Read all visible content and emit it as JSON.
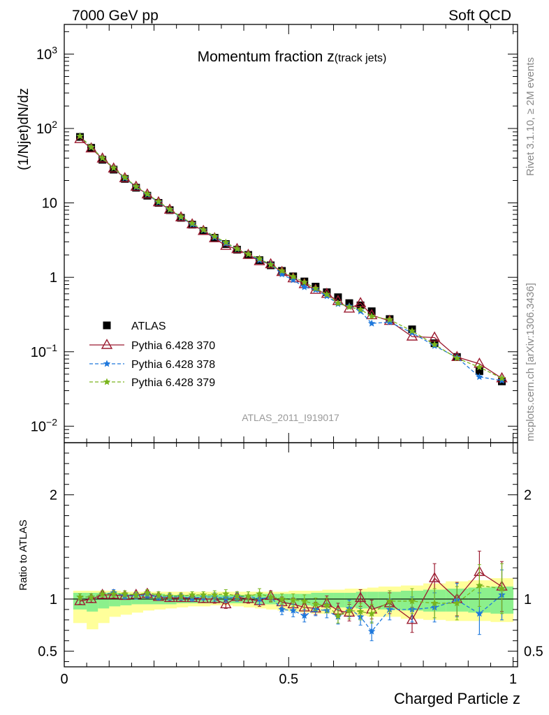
{
  "header": {
    "left": "7000 GeV pp",
    "right": "Soft QCD"
  },
  "side_labels": {
    "rivet": "Rivet 3.1.10, ≥ 2M events",
    "source": "mcplots.cern.ch [arXiv:1306.3436]"
  },
  "chart_data": [
    {
      "type": "scatter",
      "title_main": "Momentum fraction ",
      "title_var": "z",
      "title_sub": "(track jets)",
      "ylabel": "(1/Njet)dN/dz",
      "xlabel": "",
      "yscale": "log",
      "ylim": [
        0.006,
        2500
      ],
      "xlim": [
        0,
        1.01
      ],
      "y_ticks": [
        {
          "v": 0.01,
          "b": "10",
          "e": "−2"
        },
        {
          "v": 0.1,
          "b": "10",
          "e": "−1"
        },
        {
          "v": 1,
          "b": "1",
          "e": ""
        },
        {
          "v": 10,
          "b": "10",
          "e": ""
        },
        {
          "v": 100,
          "b": "10",
          "e": "2"
        },
        {
          "v": 1000,
          "b": "10",
          "e": "3"
        }
      ],
      "analysis_label": "ATLAS_2011_I919017",
      "legend": {
        "placement": "bottom-left"
      },
      "x": [
        0.035,
        0.06,
        0.085,
        0.11,
        0.135,
        0.16,
        0.185,
        0.21,
        0.235,
        0.26,
        0.285,
        0.31,
        0.335,
        0.36,
        0.385,
        0.41,
        0.435,
        0.46,
        0.485,
        0.51,
        0.535,
        0.56,
        0.585,
        0.61,
        0.635,
        0.66,
        0.685,
        0.725,
        0.775,
        0.825,
        0.875,
        0.925,
        0.975
      ],
      "series": [
        {
          "name": "ATLAS",
          "color": "#000000",
          "marker": "square",
          "line": "none",
          "values": [
            77,
            55,
            38,
            28,
            21,
            16,
            12.5,
            10,
            8,
            6.3,
            5.1,
            4.2,
            3.4,
            2.8,
            2.35,
            2.0,
            1.7,
            1.45,
            1.22,
            1.03,
            0.88,
            0.75,
            0.63,
            0.54,
            0.45,
            0.42,
            0.35,
            0.275,
            0.2,
            0.13,
            0.085,
            0.055,
            0.04
          ]
        },
        {
          "name": "Pythia 6.428 370",
          "color": "#9b1b30",
          "marker": "triangle",
          "line": "solid",
          "values": [
            72,
            54,
            39.5,
            29,
            21.5,
            16.5,
            13,
            10.2,
            8.1,
            6.4,
            5.15,
            4.2,
            3.35,
            2.65,
            2.4,
            2.0,
            1.65,
            1.5,
            1.18,
            0.97,
            0.81,
            0.68,
            0.6,
            0.48,
            0.38,
            0.45,
            0.31,
            0.26,
            0.16,
            0.155,
            0.085,
            0.069,
            0.044
          ]
        },
        {
          "name": "Pythia 6.428 378",
          "color": "#1e78dc",
          "marker": "star",
          "line": "dashed",
          "values": [
            79,
            56,
            40,
            29.5,
            21.5,
            16.4,
            13,
            10.2,
            8.1,
            6.4,
            5.15,
            4.3,
            3.45,
            2.85,
            2.4,
            2.05,
            1.7,
            1.5,
            1.1,
            0.92,
            0.74,
            0.68,
            0.56,
            0.44,
            0.41,
            0.35,
            0.24,
            0.25,
            0.18,
            0.12,
            0.084,
            0.046,
            0.041
          ]
        },
        {
          "name": "Pythia 6.428 379",
          "color": "#7ab51d",
          "marker": "star",
          "line": "dashed",
          "values": [
            79,
            56,
            40,
            29.5,
            22,
            16.6,
            13.2,
            10.4,
            8.2,
            6.5,
            5.3,
            4.35,
            3.55,
            2.95,
            2.42,
            2.05,
            1.78,
            1.48,
            1.22,
            1.02,
            0.86,
            0.71,
            0.59,
            0.45,
            0.4,
            0.37,
            0.3,
            0.27,
            0.19,
            0.125,
            0.082,
            0.062,
            0.044
          ]
        }
      ]
    },
    {
      "type": "scatter",
      "title": "",
      "ylabel": "Ratio to ATLAS",
      "xlabel": "Charged Particle z",
      "ylim": [
        0.35,
        2.5
      ],
      "xlim": [
        0,
        1.01
      ],
      "y_ticks": [
        "0.5",
        "1",
        "2"
      ],
      "x_ticks": [
        "0",
        "0.5",
        "1"
      ],
      "reference_line": 1,
      "bands": {
        "inner_color": "#8cf08c",
        "outer_color": "#ffff9a",
        "x_edges": [
          0.02,
          0.05,
          0.075,
          0.1,
          0.125,
          0.15,
          0.175,
          0.2,
          0.225,
          0.25,
          0.275,
          0.3,
          0.325,
          0.35,
          0.375,
          0.4,
          0.425,
          0.45,
          0.475,
          0.5,
          0.525,
          0.55,
          0.575,
          0.6,
          0.625,
          0.65,
          0.675,
          0.7,
          0.75,
          0.8,
          0.85,
          0.9,
          0.95,
          1.0
        ],
        "inner_lo": [
          0.9,
          0.88,
          0.91,
          0.93,
          0.94,
          0.95,
          0.95,
          0.95,
          0.95,
          0.96,
          0.96,
          0.96,
          0.96,
          0.96,
          0.96,
          0.96,
          0.95,
          0.95,
          0.95,
          0.94,
          0.94,
          0.93,
          0.93,
          0.92,
          0.92,
          0.91,
          0.91,
          0.9,
          0.89,
          0.88,
          0.88,
          0.87,
          0.86
        ],
        "inner_hi": [
          1.06,
          1.06,
          1.06,
          1.06,
          1.05,
          1.05,
          1.05,
          1.05,
          1.04,
          1.04,
          1.04,
          1.04,
          1.04,
          1.04,
          1.04,
          1.04,
          1.05,
          1.05,
          1.05,
          1.05,
          1.05,
          1.06,
          1.06,
          1.06,
          1.06,
          1.07,
          1.07,
          1.07,
          1.08,
          1.09,
          1.1,
          1.11,
          1.12
        ],
        "outer_lo": [
          0.77,
          0.71,
          0.77,
          0.83,
          0.85,
          0.87,
          0.89,
          0.9,
          0.91,
          0.92,
          0.93,
          0.93,
          0.94,
          0.94,
          0.93,
          0.92,
          0.91,
          0.9,
          0.89,
          0.88,
          0.87,
          0.86,
          0.86,
          0.85,
          0.84,
          0.84,
          0.83,
          0.83,
          0.81,
          0.8,
          0.79,
          0.79,
          0.78
        ],
        "outer_hi": [
          1.08,
          1.08,
          1.08,
          1.08,
          1.07,
          1.07,
          1.07,
          1.07,
          1.07,
          1.07,
          1.07,
          1.07,
          1.07,
          1.07,
          1.07,
          1.07,
          1.07,
          1.07,
          1.07,
          1.08,
          1.08,
          1.08,
          1.09,
          1.09,
          1.1,
          1.1,
          1.11,
          1.12,
          1.13,
          1.15,
          1.17,
          1.18,
          1.2
        ]
      },
      "x": [
        0.035,
        0.06,
        0.085,
        0.11,
        0.135,
        0.16,
        0.185,
        0.21,
        0.235,
        0.26,
        0.285,
        0.31,
        0.335,
        0.36,
        0.385,
        0.41,
        0.435,
        0.46,
        0.485,
        0.51,
        0.535,
        0.56,
        0.585,
        0.61,
        0.635,
        0.66,
        0.685,
        0.725,
        0.775,
        0.825,
        0.875,
        0.925,
        0.975
      ],
      "series": [
        {
          "name": "Pythia 6.428 370",
          "color": "#9b1b30",
          "marker": "triangle",
          "line": "solid",
          "values": [
            0.98,
            1.0,
            1.04,
            1.04,
            1.03,
            1.04,
            1.05,
            1.02,
            1.01,
            1.01,
            1.01,
            1.0,
            1.0,
            0.95,
            1.02,
            1.0,
            0.98,
            1.03,
            0.97,
            0.95,
            0.92,
            0.91,
            0.96,
            0.89,
            0.87,
            1.01,
            0.9,
            0.96,
            0.8,
            1.2,
            1.0,
            1.26,
            1.12
          ],
          "err": [
            0.03,
            0.03,
            0.03,
            0.03,
            0.03,
            0.03,
            0.03,
            0.03,
            0.03,
            0.03,
            0.03,
            0.03,
            0.04,
            0.04,
            0.04,
            0.04,
            0.05,
            0.05,
            0.05,
            0.06,
            0.06,
            0.06,
            0.07,
            0.07,
            0.08,
            0.08,
            0.09,
            0.1,
            0.12,
            0.14,
            0.16,
            0.2,
            0.24
          ]
        },
        {
          "name": "Pythia 6.428 378",
          "color": "#1e78dc",
          "marker": "star",
          "line": "dashed",
          "values": [
            1.02,
            1.02,
            1.05,
            1.06,
            1.03,
            1.03,
            1.04,
            1.02,
            1.02,
            1.02,
            1.01,
            1.02,
            1.02,
            1.01,
            1.02,
            1.03,
            1.0,
            1.02,
            0.9,
            0.89,
            0.84,
            0.9,
            0.89,
            0.83,
            0.91,
            0.83,
            0.69,
            0.9,
            0.9,
            0.92,
            0.99,
            0.86,
            1.04
          ],
          "err": [
            0.03,
            0.03,
            0.03,
            0.03,
            0.03,
            0.03,
            0.03,
            0.03,
            0.03,
            0.03,
            0.03,
            0.03,
            0.04,
            0.04,
            0.04,
            0.04,
            0.05,
            0.05,
            0.05,
            0.06,
            0.06,
            0.06,
            0.07,
            0.07,
            0.08,
            0.08,
            0.09,
            0.1,
            0.12,
            0.14,
            0.16,
            0.2,
            0.24
          ]
        },
        {
          "name": "Pythia 6.428 379",
          "color": "#7ab51d",
          "marker": "star",
          "line": "dashed",
          "values": [
            1.02,
            1.02,
            1.05,
            1.05,
            1.05,
            1.04,
            1.06,
            1.04,
            1.03,
            1.03,
            1.04,
            1.04,
            1.04,
            1.05,
            1.03,
            1.03,
            1.05,
            1.02,
            1.0,
            0.99,
            0.98,
            0.95,
            0.94,
            0.84,
            0.89,
            0.88,
            0.86,
            0.98,
            0.98,
            0.96,
            0.96,
            1.13,
            1.1
          ],
          "err": [
            0.03,
            0.03,
            0.03,
            0.03,
            0.03,
            0.03,
            0.03,
            0.03,
            0.03,
            0.03,
            0.03,
            0.03,
            0.04,
            0.04,
            0.04,
            0.04,
            0.05,
            0.05,
            0.05,
            0.06,
            0.06,
            0.06,
            0.07,
            0.07,
            0.08,
            0.08,
            0.09,
            0.1,
            0.12,
            0.14,
            0.16,
            0.2,
            0.24
          ]
        }
      ]
    }
  ]
}
